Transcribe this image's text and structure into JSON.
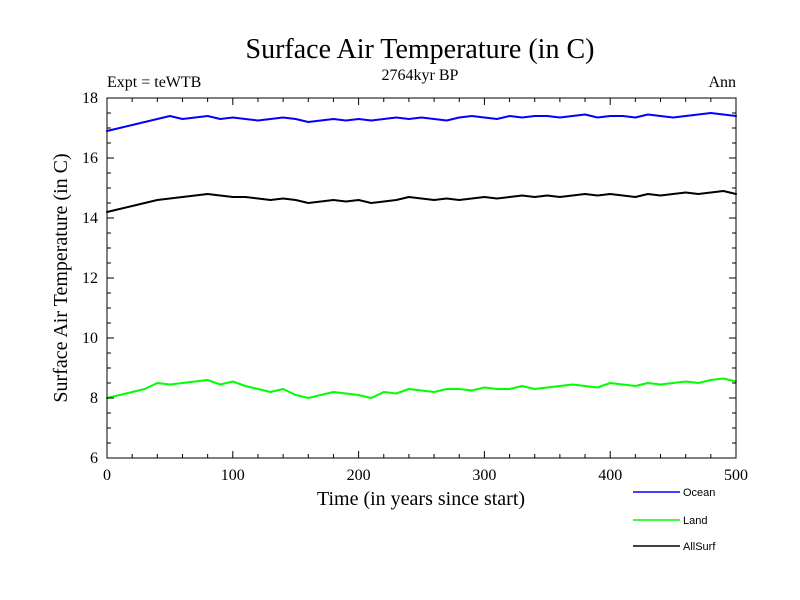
{
  "chart_data": {
    "type": "line",
    "title": "Surface Air Temperature (in C)",
    "subtitle": "2764kyr BP",
    "left_label": "Expt = teWTB",
    "right_label": "Ann",
    "xlabel": "Time (in years since start)",
    "ylabel": "Surface Air Temperature (in C)",
    "xlim": [
      0,
      500
    ],
    "ylim": [
      6,
      18
    ],
    "x_ticks": [
      0,
      100,
      200,
      300,
      400,
      500
    ],
    "y_ticks": [
      6,
      8,
      10,
      12,
      14,
      16,
      18
    ],
    "x_tick_labels": [
      "0",
      "100",
      "200",
      "300",
      "400",
      "500"
    ],
    "y_tick_labels": [
      "6",
      "8",
      "10",
      "12",
      "14",
      "16",
      "18"
    ],
    "legend_position": "bottom-right",
    "series": [
      {
        "name": "Ocean",
        "color": "#0000ff",
        "x": [
          0,
          10,
          20,
          30,
          40,
          50,
          60,
          70,
          80,
          90,
          100,
          110,
          120,
          130,
          140,
          150,
          160,
          170,
          180,
          190,
          200,
          210,
          220,
          230,
          240,
          250,
          260,
          270,
          280,
          290,
          300,
          310,
          320,
          330,
          340,
          350,
          360,
          370,
          380,
          390,
          400,
          410,
          420,
          430,
          440,
          450,
          460,
          470,
          480,
          490,
          500
        ],
        "values": [
          16.9,
          17.0,
          17.1,
          17.2,
          17.3,
          17.4,
          17.3,
          17.35,
          17.4,
          17.3,
          17.35,
          17.3,
          17.25,
          17.3,
          17.35,
          17.3,
          17.2,
          17.25,
          17.3,
          17.25,
          17.3,
          17.25,
          17.3,
          17.35,
          17.3,
          17.35,
          17.3,
          17.25,
          17.35,
          17.4,
          17.35,
          17.3,
          17.4,
          17.35,
          17.4,
          17.4,
          17.35,
          17.4,
          17.45,
          17.35,
          17.4,
          17.4,
          17.35,
          17.45,
          17.4,
          17.35,
          17.4,
          17.45,
          17.5,
          17.45,
          17.4
        ]
      },
      {
        "name": "Land",
        "color": "#00ff00",
        "x": [
          0,
          10,
          20,
          30,
          40,
          50,
          60,
          70,
          80,
          90,
          100,
          110,
          120,
          130,
          140,
          150,
          160,
          170,
          180,
          190,
          200,
          210,
          220,
          230,
          240,
          250,
          260,
          270,
          280,
          290,
          300,
          310,
          320,
          330,
          340,
          350,
          360,
          370,
          380,
          390,
          400,
          410,
          420,
          430,
          440,
          450,
          460,
          470,
          480,
          490,
          500
        ],
        "values": [
          8.0,
          8.1,
          8.2,
          8.3,
          8.5,
          8.45,
          8.5,
          8.55,
          8.6,
          8.45,
          8.55,
          8.4,
          8.3,
          8.2,
          8.3,
          8.1,
          8.0,
          8.1,
          8.2,
          8.15,
          8.1,
          8.0,
          8.2,
          8.15,
          8.3,
          8.25,
          8.2,
          8.3,
          8.3,
          8.25,
          8.35,
          8.3,
          8.3,
          8.4,
          8.3,
          8.35,
          8.4,
          8.45,
          8.4,
          8.35,
          8.5,
          8.45,
          8.4,
          8.5,
          8.45,
          8.5,
          8.55,
          8.5,
          8.6,
          8.65,
          8.55
        ]
      },
      {
        "name": "AllSurf",
        "color": "#000000",
        "x": [
          0,
          10,
          20,
          30,
          40,
          50,
          60,
          70,
          80,
          90,
          100,
          110,
          120,
          130,
          140,
          150,
          160,
          170,
          180,
          190,
          200,
          210,
          220,
          230,
          240,
          250,
          260,
          270,
          280,
          290,
          300,
          310,
          320,
          330,
          340,
          350,
          360,
          370,
          380,
          390,
          400,
          410,
          420,
          430,
          440,
          450,
          460,
          470,
          480,
          490,
          500
        ],
        "values": [
          14.2,
          14.3,
          14.4,
          14.5,
          14.6,
          14.65,
          14.7,
          14.75,
          14.8,
          14.75,
          14.7,
          14.7,
          14.65,
          14.6,
          14.65,
          14.6,
          14.5,
          14.55,
          14.6,
          14.55,
          14.6,
          14.5,
          14.55,
          14.6,
          14.7,
          14.65,
          14.6,
          14.65,
          14.6,
          14.65,
          14.7,
          14.65,
          14.7,
          14.75,
          14.7,
          14.75,
          14.7,
          14.75,
          14.8,
          14.75,
          14.8,
          14.75,
          14.7,
          14.8,
          14.75,
          14.8,
          14.85,
          14.8,
          14.85,
          14.9,
          14.8
        ]
      }
    ]
  }
}
